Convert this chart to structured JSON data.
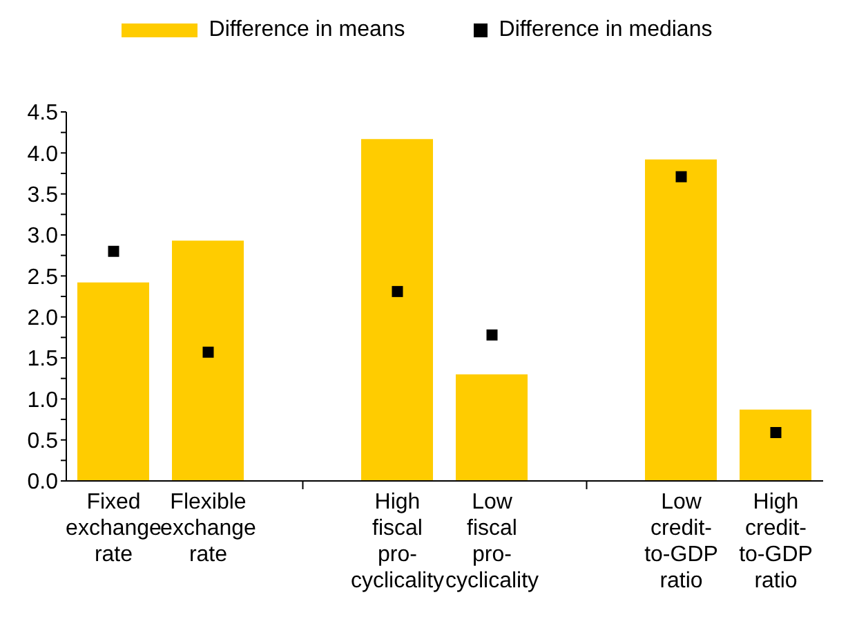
{
  "chart_data": {
    "type": "bar",
    "categories": [
      "Fixed\nexchange\nrate",
      "Flexible\nexchange\nrate",
      null,
      "High\nfiscal\npro-\ncyclicality",
      "Low\nfiscal\npro-\ncyclicality",
      null,
      "Low\ncredit-\nto-GDP\nratio",
      "High\ncredit-\nto-GDP\nratio"
    ],
    "series": [
      {
        "name": "Difference in means",
        "color": "#ffcc00",
        "values": [
          2.42,
          2.93,
          null,
          4.17,
          1.3,
          null,
          3.92,
          0.87
        ]
      },
      {
        "name": "Difference in medians",
        "type": "scatter",
        "color": "#000000",
        "marker": "square",
        "values": [
          2.8,
          1.57,
          null,
          2.31,
          1.78,
          null,
          3.71,
          0.59
        ]
      }
    ],
    "ylim": [
      0,
      4.5
    ],
    "yticks": [
      {
        "value": 0,
        "label": "0.0"
      },
      {
        "value": 0.25,
        "label": null
      },
      0.5,
      {
        "value": 0.75,
        "label": null
      },
      {
        "value": 1,
        "label": "1.0"
      },
      {
        "value": 1.25,
        "label": null
      },
      1.5,
      {
        "value": 1.75,
        "label": null
      },
      {
        "value": 2,
        "label": "2.0"
      },
      {
        "value": 2.25,
        "label": null
      },
      2.5,
      {
        "value": 2.75,
        "label": null
      },
      {
        "value": 3,
        "label": "3.0"
      },
      {
        "value": 3.25,
        "label": null
      },
      3.5,
      {
        "value": 3.75,
        "label": null
      },
      {
        "value": 4,
        "label": "4.0"
      },
      {
        "value": 4.25,
        "label": null
      },
      4.5
    ],
    "grid": false,
    "legend": "top"
  }
}
